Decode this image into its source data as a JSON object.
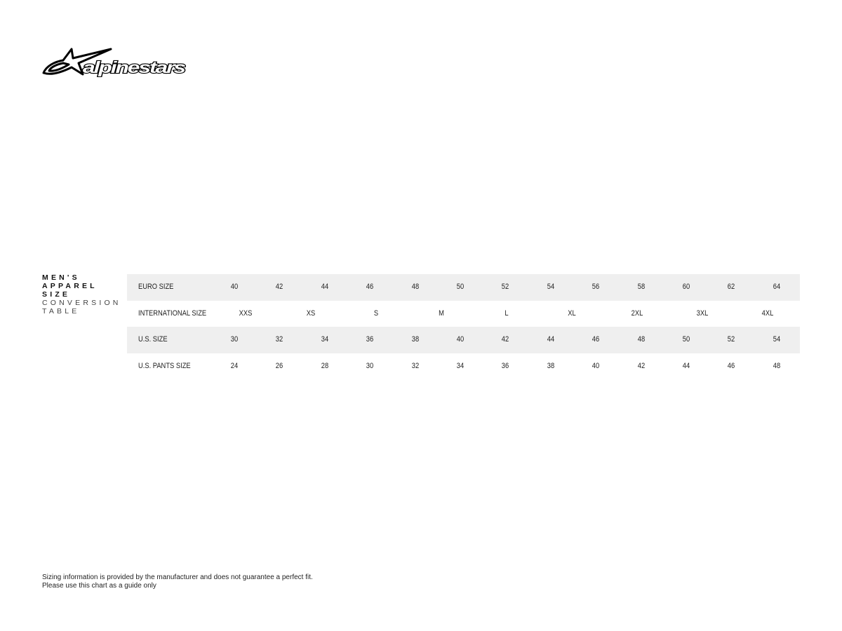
{
  "logo": {
    "text": "alpinestars"
  },
  "title": {
    "line1": "MEN'S",
    "line2": "APPAREL",
    "line3": "SIZE",
    "line4": "CONVERSION",
    "line5": "TABLE"
  },
  "table": {
    "rows": [
      {
        "label": "EURO SIZE",
        "values": [
          "40",
          "42",
          "44",
          "46",
          "48",
          "50",
          "52",
          "54",
          "56",
          "58",
          "60",
          "62",
          "64"
        ]
      },
      {
        "label": "INTERNATIONAL SIZE",
        "values": [
          "XXS",
          "XS",
          "S",
          "M",
          "L",
          "XL",
          "2XL",
          "3XL",
          "4XL"
        ]
      },
      {
        "label": "U.S. SIZE",
        "values": [
          "30",
          "32",
          "34",
          "36",
          "38",
          "40",
          "42",
          "44",
          "46",
          "48",
          "50",
          "52",
          "54"
        ]
      },
      {
        "label": "U.S. PANTS SIZE",
        "values": [
          "24",
          "26",
          "28",
          "30",
          "32",
          "34",
          "36",
          "38",
          "40",
          "42",
          "44",
          "46",
          "48"
        ]
      }
    ],
    "shade_color": "#efefef"
  },
  "footer": {
    "line1": "Sizing information is provided by the manufacturer and does not guarantee a perfect fit.",
    "line2": "Please use this chart as a guide only"
  }
}
